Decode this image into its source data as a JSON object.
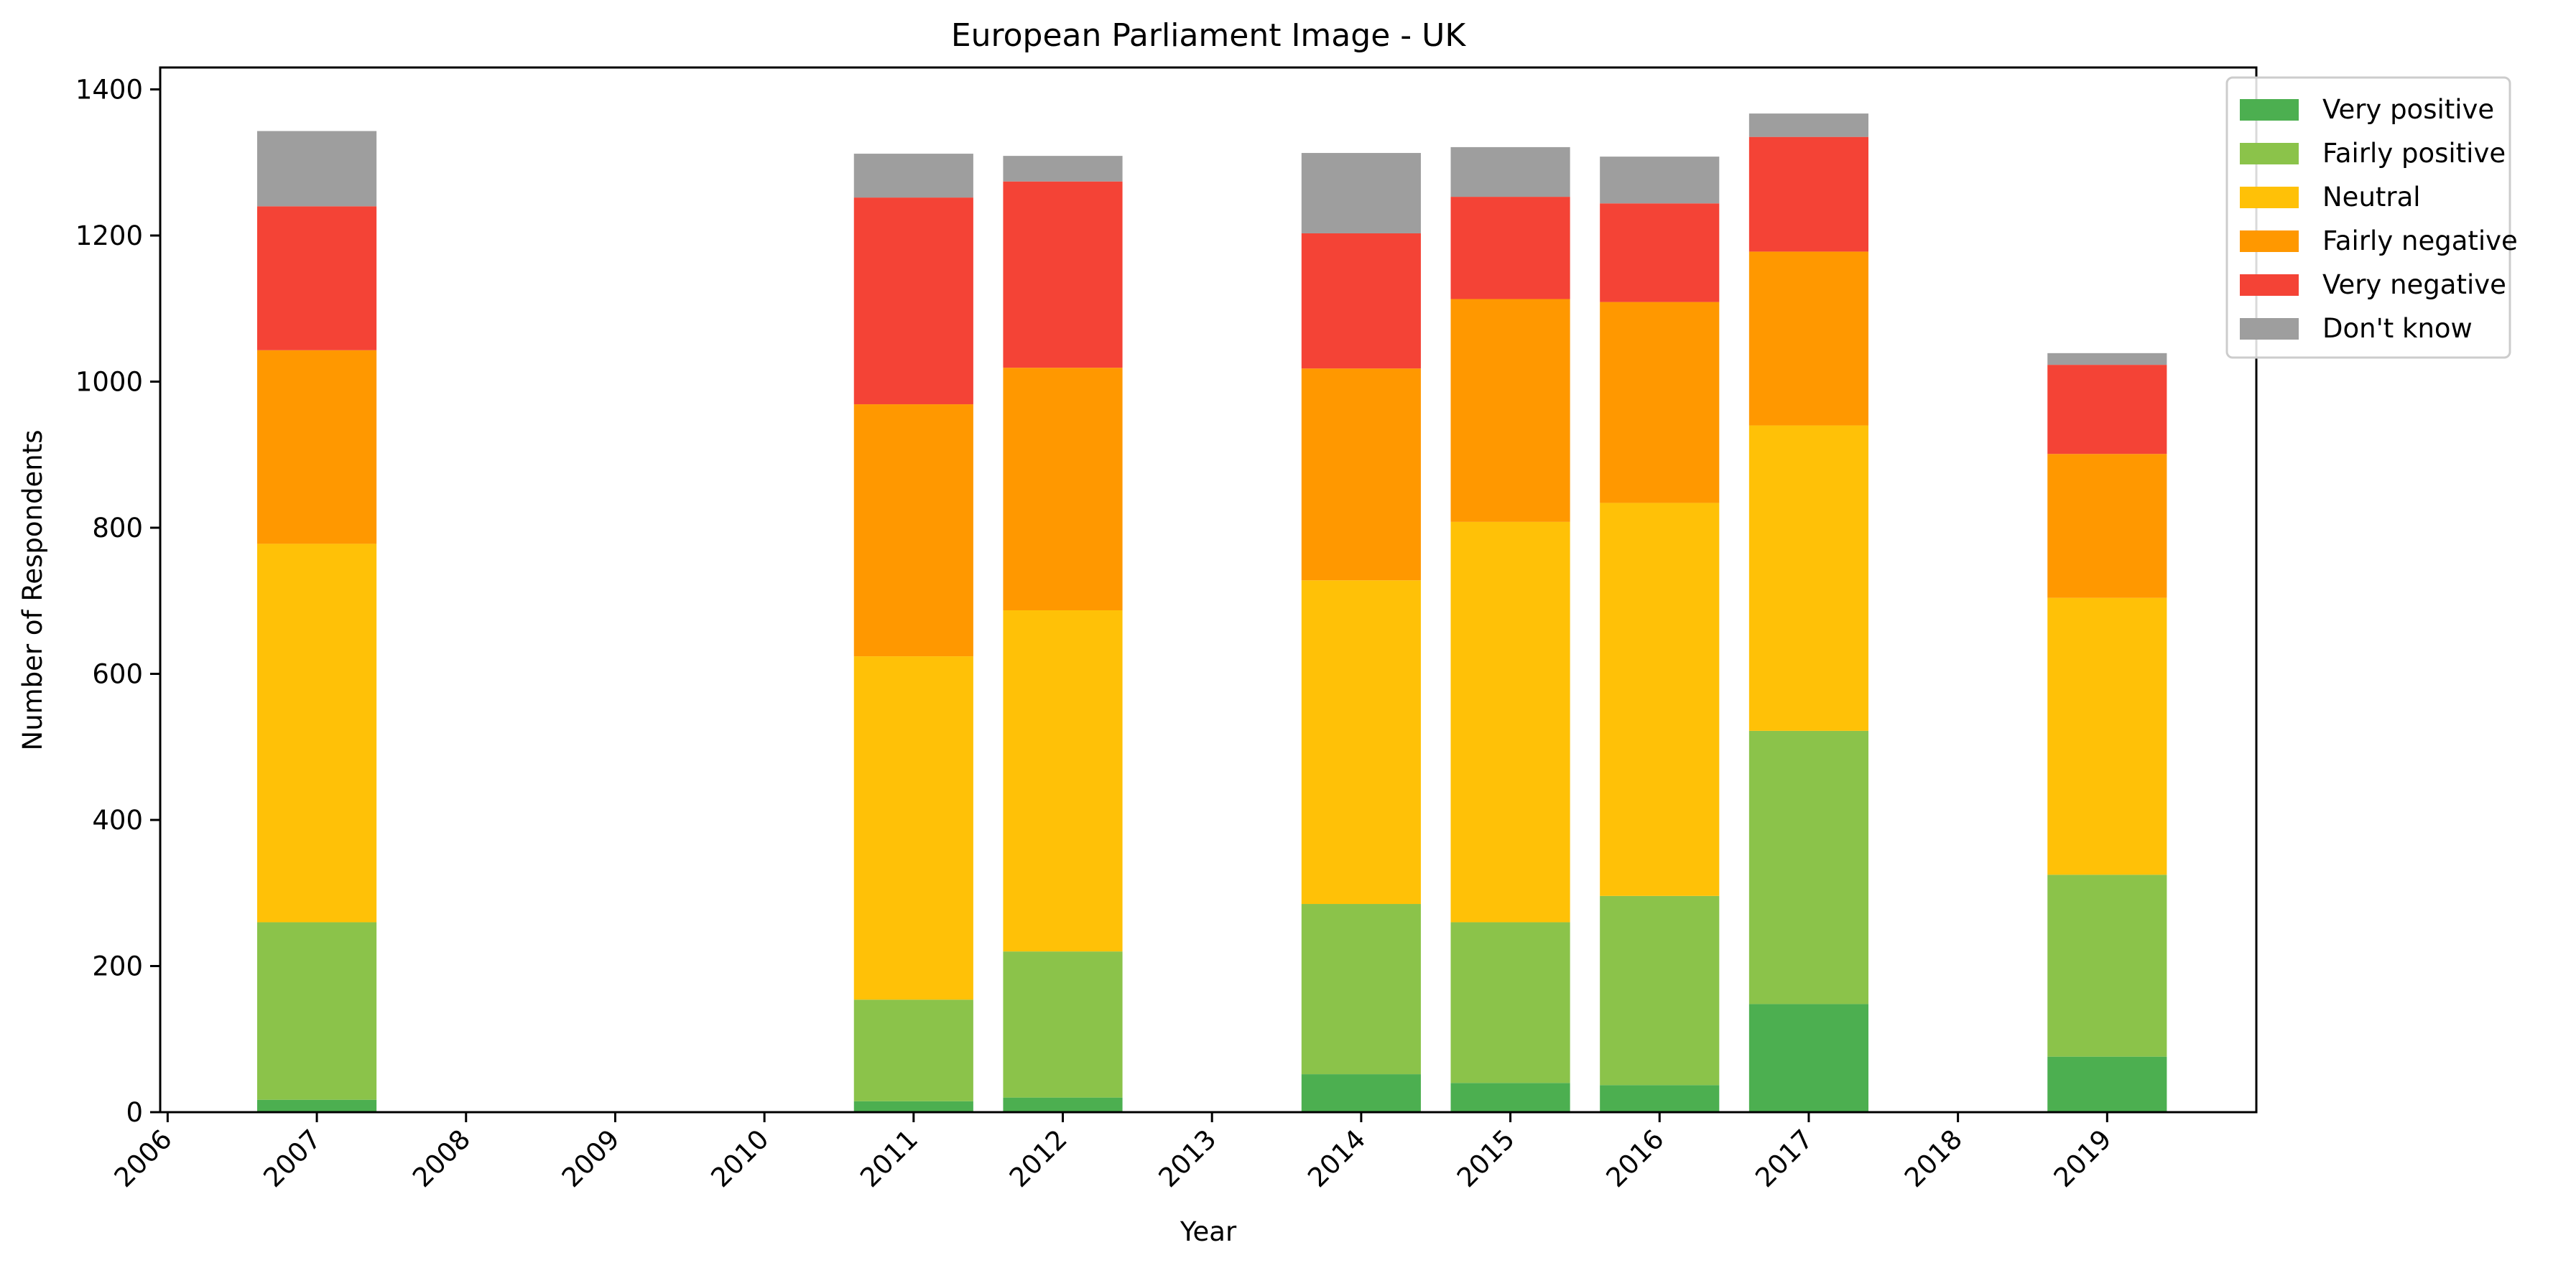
{
  "chart_data": {
    "type": "bar",
    "stacked": true,
    "title": "European Parliament Image - UK",
    "xlabel": "Year",
    "ylabel": "Number of Respondents",
    "xlim": [
      2005.95,
      2020.0
    ],
    "ylim": [
      0,
      1430
    ],
    "x_ticks": [
      "2006",
      "2007",
      "2008",
      "2009",
      "2010",
      "2011",
      "2012",
      "2013",
      "2014",
      "2015",
      "2016",
      "2017",
      "2018",
      "2019"
    ],
    "y_ticks": [
      "0",
      "200",
      "400",
      "600",
      "800",
      "1000",
      "1200",
      "1400"
    ],
    "grid": false,
    "legend_position": "top-right",
    "categories": [
      "2007",
      "2011",
      "2012",
      "2014",
      "2015",
      "2016",
      "2017",
      "2019"
    ],
    "series": [
      {
        "name": "Very positive",
        "color": "#4caf50",
        "values": [
          17,
          15,
          20,
          52,
          40,
          37,
          148,
          76
        ]
      },
      {
        "name": "Fairly positive",
        "color": "#8bc34a",
        "values": [
          243,
          139,
          200,
          233,
          220,
          259,
          374,
          249
        ]
      },
      {
        "name": "Neutral",
        "color": "#ffc107",
        "values": [
          518,
          470,
          467,
          443,
          548,
          538,
          418,
          379
        ]
      },
      {
        "name": "Fairly negative",
        "color": "#ff9800",
        "values": [
          265,
          345,
          332,
          290,
          305,
          275,
          238,
          197
        ]
      },
      {
        "name": "Very negative",
        "color": "#f44336",
        "values": [
          197,
          283,
          255,
          185,
          140,
          135,
          157,
          122
        ]
      },
      {
        "name": "Don't know",
        "color": "#9e9e9e",
        "values": [
          103,
          60,
          35,
          110,
          68,
          64,
          32,
          16
        ]
      }
    ]
  }
}
